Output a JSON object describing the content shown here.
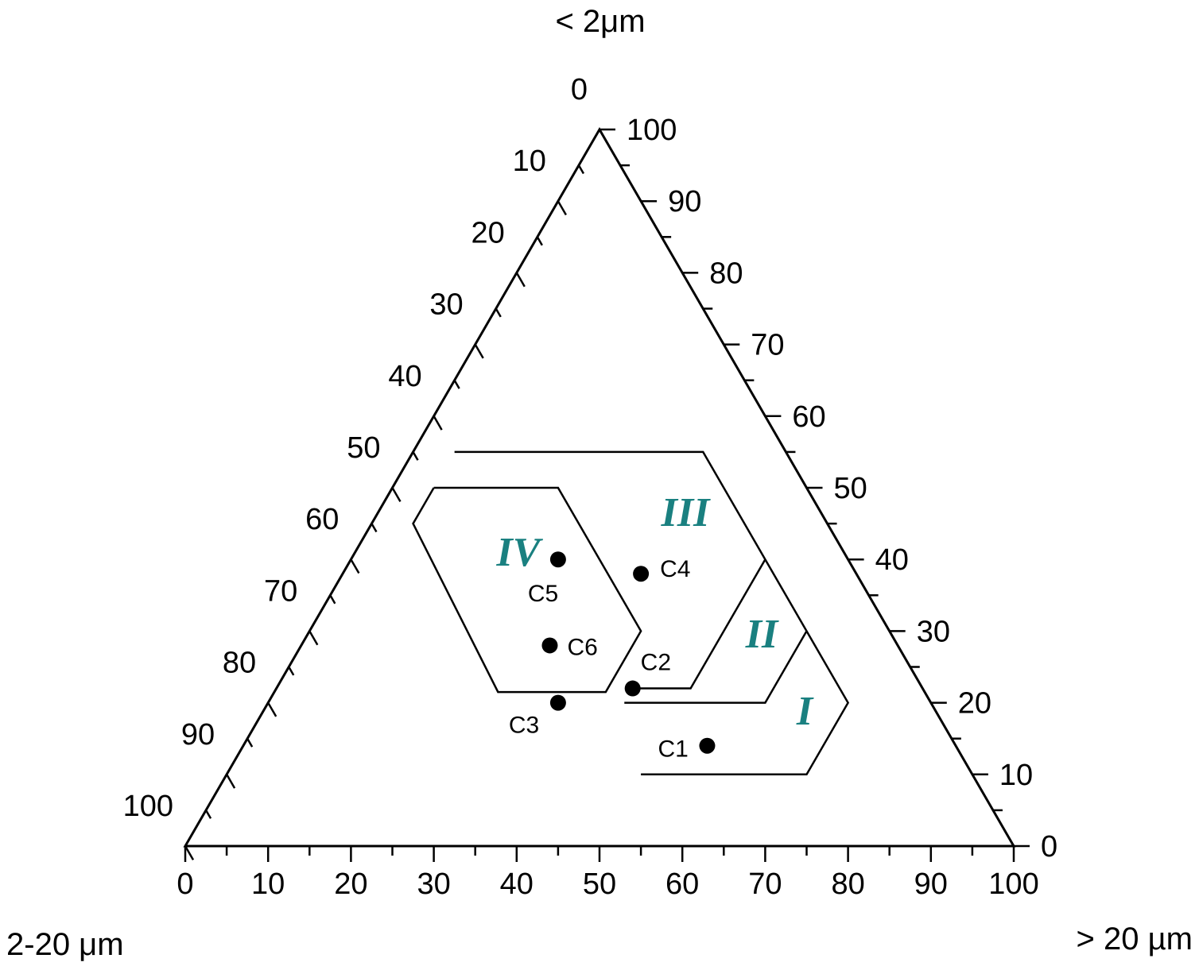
{
  "chart_data": {
    "type": "ternary-scatter",
    "axes": {
      "top": {
        "label": "< 2μm",
        "ticks": [
          0,
          10,
          20,
          30,
          40,
          50,
          60,
          70,
          80,
          90,
          100
        ]
      },
      "left": {
        "label": "2-20 μm",
        "ticks": [
          0,
          10,
          20,
          30,
          40,
          50,
          60,
          70,
          80,
          90,
          100
        ]
      },
      "right": {
        "label": "> 20 µm",
        "ticks": [
          0,
          10,
          20,
          30,
          40,
          50,
          60,
          70,
          80,
          90,
          100
        ]
      }
    },
    "points": [
      {
        "label": "C1",
        "clay": 14,
        "silt": 30,
        "sand": 56
      },
      {
        "label": "C2",
        "clay": 22,
        "silt": 35,
        "sand": 43
      },
      {
        "label": "C3",
        "clay": 20,
        "silt": 45,
        "sand": 35
      },
      {
        "label": "C4",
        "clay": 38,
        "silt": 26,
        "sand": 36
      },
      {
        "label": "C5",
        "clay": 40,
        "silt": 35,
        "sand": 25
      },
      {
        "label": "C6",
        "clay": 28,
        "silt": 42,
        "sand": 30
      }
    ],
    "regions": [
      {
        "label": "III",
        "line": [
          [
            55,
            5
          ],
          [
            55,
            35
          ],
          [
            20,
            70
          ],
          [
            10,
            70
          ],
          [
            10,
            50
          ]
        ]
      },
      {
        "label": "II",
        "line": [
          [
            40,
            50
          ],
          [
            22,
            50
          ],
          [
            22,
            43
          ]
        ]
      },
      {
        "label": "I",
        "line": [
          [
            30,
            60
          ],
          [
            20,
            60
          ],
          [
            20,
            43
          ]
        ]
      },
      {
        "label": "IV",
        "line": [
          [
            50,
            5
          ],
          [
            50,
            20
          ],
          [
            30,
            40
          ],
          [
            21.5,
            40
          ],
          [
            21.5,
            27
          ],
          [
            45,
            5
          ],
          [
            50,
            5
          ]
        ]
      }
    ],
    "region_color": "#1a8080",
    "point_color": "#000000"
  }
}
